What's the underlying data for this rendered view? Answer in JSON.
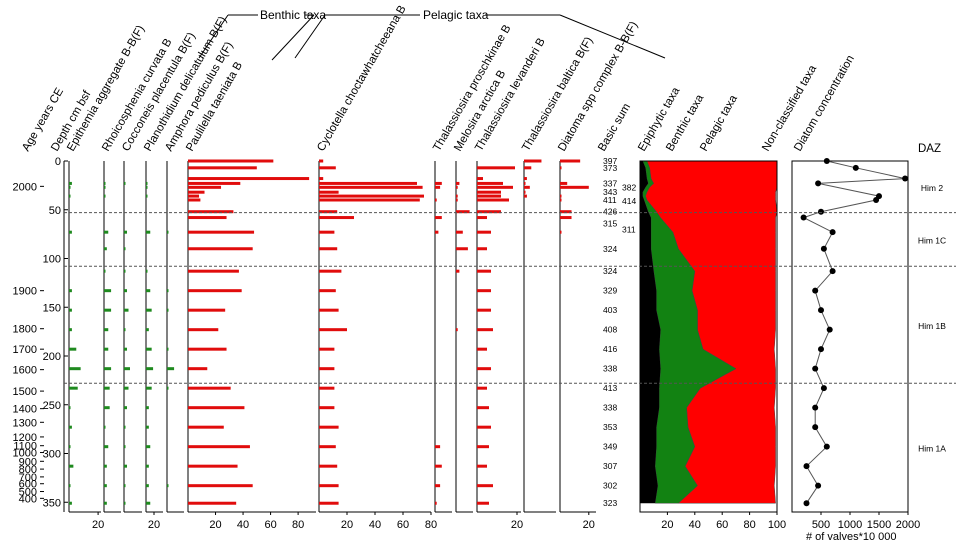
{
  "chart_data": {
    "type": "stratigraphic-diagram",
    "group_labels": {
      "benthic": "Benthic taxa",
      "pelagic": "Pelagic taxa"
    },
    "axis_headers": {
      "age": "Age years CE",
      "depth": "Depth cm bsf",
      "basic_sum": "Basic sum",
      "concentration": "Diatom concentration",
      "daz": "DAZ"
    },
    "concentration_unit": "# of valves*10 000",
    "depth_ticks": [
      0,
      50,
      100,
      150,
      200,
      250,
      300,
      350
    ],
    "age_ticks": [
      2000,
      1900,
      1800,
      1700,
      1600,
      1500,
      1400,
      1300,
      1200,
      1100,
      1000,
      900,
      800,
      700,
      600,
      500,
      400
    ],
    "samples_depth_cm": [
      0,
      7,
      18,
      23,
      27,
      32,
      36,
      40,
      52,
      58,
      73,
      90,
      113,
      133,
      153,
      173,
      193,
      213,
      233,
      253,
      273,
      293,
      313,
      333,
      351
    ],
    "basic_sums": [
      {
        "value": "397",
        "depth": 0
      },
      {
        "value": "373",
        "depth": 7
      },
      {
        "value": "337",
        "depth": 23
      },
      {
        "value": "382",
        "depth": 27
      },
      {
        "value": "343",
        "depth": 32
      },
      {
        "value": "411",
        "depth": 40
      },
      {
        "value": "414",
        "depth": 41
      },
      {
        "value": "426",
        "depth": 52
      },
      {
        "value": "315",
        "depth": 64
      },
      {
        "value": "311",
        "depth": 70
      },
      {
        "value": "324",
        "depth": 90
      },
      {
        "value": "324",
        "depth": 113
      },
      {
        "value": "329",
        "depth": 133
      },
      {
        "value": "403",
        "depth": 153
      },
      {
        "value": "408",
        "depth": 173
      },
      {
        "value": "416",
        "depth": 193
      },
      {
        "value": "338",
        "depth": 213
      },
      {
        "value": "413",
        "depth": 233
      },
      {
        "value": "338",
        "depth": 253
      },
      {
        "value": "353",
        "depth": 273
      },
      {
        "value": "349",
        "depth": 293
      },
      {
        "value": "307",
        "depth": 313
      },
      {
        "value": "302",
        "depth": 333
      },
      {
        "value": "323",
        "depth": 351
      }
    ],
    "taxa": [
      {
        "name": "Epithemia aggregate B-B(F)",
        "group": "benthic",
        "color": "#1f8a1f",
        "max": 22,
        "ticks": [
          20
        ],
        "values": [
          0,
          0,
          0,
          2,
          1,
          0,
          1,
          0,
          0,
          0,
          2,
          0,
          0,
          2,
          2,
          2,
          5,
          8,
          6,
          1,
          2,
          1,
          3,
          1,
          2
        ]
      },
      {
        "name": "Rhoicosphenia curvata B",
        "group": "benthic",
        "color": "#1f8a1f",
        "max": 12,
        "ticks": [],
        "values": [
          0,
          0,
          0,
          1,
          1,
          0,
          1,
          0,
          0,
          0,
          3,
          2,
          1,
          5,
          5,
          3,
          3,
          5,
          4,
          4,
          1,
          3,
          2,
          2,
          2
        ]
      },
      {
        "name": "Cocconeis placentula B(F)",
        "group": "benthic",
        "color": "#1f8a1f",
        "max": 12,
        "ticks": [
          20
        ],
        "values": [
          0,
          0,
          0,
          1,
          0,
          0,
          0,
          0,
          0,
          0,
          2,
          1,
          1,
          2,
          3,
          1,
          2,
          4,
          3,
          2,
          1,
          1,
          2,
          1,
          1
        ]
      },
      {
        "name": "Planothidium delicatulum B(F)",
        "group": "benthic",
        "color": "#1f8a1f",
        "max": 12,
        "ticks": [],
        "values": [
          0,
          0,
          0,
          1,
          1,
          0,
          1,
          0,
          0,
          0,
          3,
          0,
          1,
          3,
          4,
          2,
          4,
          5,
          4,
          2,
          2,
          3,
          2,
          2,
          3
        ]
      },
      {
        "name": "Amphora pediculus B(F)",
        "group": "benthic",
        "color": "#1f8a1f",
        "max": 12,
        "ticks": [],
        "values": [
          0,
          0,
          0,
          0,
          0,
          0,
          0,
          0,
          0,
          0,
          1,
          0,
          0,
          1,
          1,
          0,
          1,
          5,
          1,
          0,
          0,
          0,
          0,
          1,
          0
        ]
      },
      {
        "name": "Paulilella taeniata B",
        "group": "benthic",
        "color": "#e10c0c",
        "max": 93,
        "ticks": [
          20,
          40,
          60,
          80
        ],
        "values": [
          62,
          50,
          88,
          38,
          24,
          12,
          8,
          9,
          33,
          28,
          48,
          47,
          37,
          39,
          27,
          22,
          28,
          14,
          31,
          41,
          26,
          45,
          36,
          47,
          35
        ]
      },
      {
        "name": "Cyclotella choctawhatcheeana B",
        "group": "pelagic",
        "color": "#e10c0c",
        "max": 80,
        "ticks": [
          20,
          40,
          60,
          80
        ],
        "values": [
          3,
          12,
          3,
          70,
          74,
          14,
          75,
          72,
          13,
          25,
          11,
          13,
          16,
          12,
          14,
          20,
          11,
          11,
          11,
          11,
          14,
          12,
          13,
          14,
          14
        ]
      },
      {
        "name": "Thalassiosira proschkinae B",
        "group": "pelagic",
        "color": "#e10c0c",
        "max": 10,
        "ticks": [],
        "values": [
          0,
          0,
          0,
          4,
          3,
          0,
          0,
          1,
          0,
          4,
          2,
          0,
          0,
          0,
          0,
          0,
          0,
          0,
          0,
          0,
          0,
          3,
          4,
          3,
          1
        ]
      },
      {
        "name": "Melosira arctica B",
        "group": "pelagic",
        "color": "#e10c0c",
        "max": 10,
        "ticks": [],
        "values": [
          0,
          0,
          0,
          2,
          1,
          0,
          1,
          1,
          8,
          0,
          4,
          7,
          2,
          0,
          0,
          1,
          0,
          0,
          0,
          0,
          0,
          0,
          0,
          0,
          0
        ]
      },
      {
        "name": "Thalassiosira levanderi B",
        "group": "pelagic",
        "color": "#e10c0c",
        "max": 22,
        "ticks": [
          20
        ],
        "values": [
          0,
          19,
          3,
          13,
          18,
          12,
          12,
          16,
          12,
          5,
          7,
          5,
          7,
          7,
          7,
          8,
          5,
          7,
          5,
          6,
          7,
          6,
          5,
          8,
          6
        ]
      },
      {
        "name": "Thalassiosira baltica B(F)",
        "group": "pelagic",
        "color": "#e10c0c",
        "max": 22,
        "ticks": [],
        "values": [
          12,
          5,
          2,
          1,
          4,
          1,
          2,
          0,
          0,
          0,
          0,
          0,
          0,
          0,
          0,
          0,
          0,
          0,
          0,
          0,
          0,
          0,
          0,
          0,
          0
        ]
      },
      {
        "name": "Diatoma spp complex B-B(F)",
        "group": "pelagic",
        "color": "#e10c0c",
        "max": 25,
        "ticks": [
          20
        ],
        "values": [
          14,
          1,
          0,
          5,
          20,
          0,
          1,
          1,
          8,
          8,
          1,
          0,
          0,
          0,
          0,
          0,
          0,
          0,
          0,
          0,
          0,
          0,
          0,
          0,
          0
        ]
      }
    ],
    "summary": {
      "labels": [
        "Epiphytic taxa",
        "Benthic taxa",
        "Pelagic taxa",
        "Non-classified taxa"
      ],
      "colors": {
        "epiphytic": "#000000",
        "benthic": "#128212",
        "pelagic": "#ff0000",
        "non_classified": "#ffffff"
      },
      "ticks": [
        20,
        40,
        60,
        80,
        100
      ],
      "epiphytic_cum": [
        2,
        4,
        5,
        6,
        4,
        2,
        2,
        3,
        6,
        8,
        8,
        8,
        10,
        12,
        12,
        15,
        14,
        15,
        14,
        14,
        12,
        12,
        11,
        13,
        11
      ],
      "benthic_cum": [
        5,
        7,
        8,
        10,
        7,
        5,
        4,
        5,
        12,
        15,
        24,
        28,
        40,
        38,
        42,
        42,
        46,
        70,
        44,
        34,
        35,
        40,
        33,
        42,
        28
      ],
      "total_cum": [
        100,
        100,
        100,
        100,
        100,
        99,
        99,
        99,
        100,
        99,
        99,
        99,
        99,
        99,
        99,
        99,
        98,
        99,
        99,
        98,
        99,
        99,
        99,
        98,
        99
      ]
    },
    "concentration": {
      "ticks": [
        "500",
        "1000",
        "1500",
        "2000"
      ],
      "tick_values": [
        500,
        1000,
        1500,
        2000
      ],
      "xlim": [
        0,
        2000
      ],
      "depths": [
        0,
        7,
        18,
        23,
        36,
        40,
        52,
        58,
        73,
        90,
        113,
        133,
        153,
        173,
        193,
        213,
        233,
        253,
        273,
        293,
        313,
        333,
        351
      ],
      "values": [
        600,
        1100,
        1950,
        450,
        1500,
        1450,
        500,
        200,
        700,
        550,
        700,
        400,
        500,
        650,
        500,
        400,
        550,
        400,
        400,
        600,
        250,
        450,
        250
      ]
    },
    "zones": [
      {
        "label": "Him 2",
        "top": 0,
        "bottom": 53
      },
      {
        "label": "Him 1C",
        "top": 53,
        "bottom": 108
      },
      {
        "label": "Him 1B",
        "top": 108,
        "bottom": 228
      },
      {
        "label": "Him 1A",
        "top": 228,
        "bottom": 360
      }
    ],
    "zone_boundaries": [
      53,
      108,
      228
    ]
  }
}
